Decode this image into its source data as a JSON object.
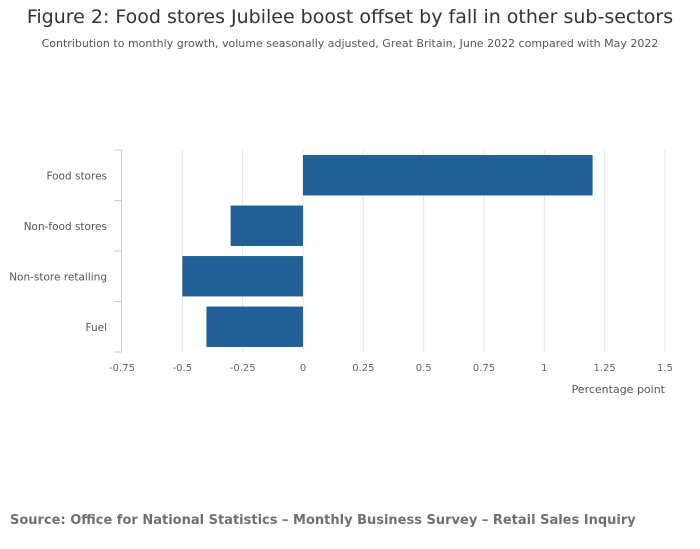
{
  "title": "Figure 2: Food stores Jubilee boost offset by fall in other sub-sectors",
  "subtitle": "Contribution to monthly growth, volume seasonally adjusted, Great Britain, June 2022 compared with May 2022",
  "source": "Source: Office for National Statistics – Monthly Business Survey – Retail Sales Inquiry",
  "colors": {
    "bar": "#206095",
    "grid": "#e6e6e6",
    "axis": "#cccccc",
    "tick_text": "#666666"
  },
  "chart_data": {
    "type": "bar",
    "orientation": "horizontal",
    "categories": [
      "Food stores",
      "Non-food stores",
      "Non-store retailing",
      "Fuel"
    ],
    "values": [
      1.2,
      -0.3,
      -0.5,
      -0.4
    ],
    "xlabel": "Percentage point",
    "xlim": [
      -0.75,
      1.5
    ],
    "xticks": [
      -0.75,
      -0.5,
      -0.25,
      0,
      0.25,
      0.5,
      0.75,
      1,
      1.25,
      1.5
    ],
    "xtick_labels": [
      "-0.75",
      "-0.5",
      "-0.25",
      "0",
      "0.25",
      "0.5",
      "0.75",
      "1",
      "1.25",
      "1.5"
    ],
    "grid": true,
    "legend": "none"
  }
}
